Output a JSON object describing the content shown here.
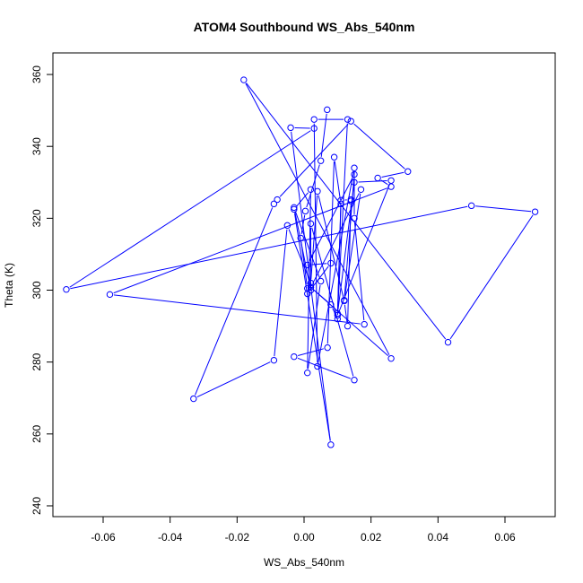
{
  "chart_data": {
    "type": "line",
    "title": "ATOM4 Southbound WS_Abs_540nm",
    "xlabel": "WS_Abs_540nm",
    "ylabel": "Theta (K)",
    "xlim": [
      -0.075,
      0.075
    ],
    "ylim": [
      237,
      366
    ],
    "x_ticks": [
      -0.06,
      -0.04,
      -0.02,
      0.0,
      0.02,
      0.04,
      0.06
    ],
    "x_tick_labels": [
      "-0.06",
      "-0.04",
      "-0.02",
      "0.00",
      "0.02",
      "0.04",
      "0.06"
    ],
    "y_ticks": [
      240,
      260,
      280,
      300,
      320,
      340,
      360
    ],
    "y_tick_labels": [
      "240",
      "260",
      "280",
      "300",
      "320",
      "340",
      "360"
    ],
    "grid": false,
    "line_color": "#0000ff",
    "marker": "open-circle",
    "points": [
      {
        "x": 0.0069,
        "y": 350.2
      },
      {
        "x": 0.005,
        "y": 336.0
      },
      {
        "x": 0.0004,
        "y": 322.0
      },
      {
        "x": -0.001,
        "y": 314.5
      },
      {
        "x": 0.001,
        "y": 300.5
      },
      {
        "x": 0.002,
        "y": 300.8
      },
      {
        "x": 0.026,
        "y": 281.0
      },
      {
        "x": -0.018,
        "y": 358.5
      },
      {
        "x": 0.043,
        "y": 285.5
      },
      {
        "x": 0.069,
        "y": 321.8
      },
      {
        "x": 0.05,
        "y": 323.5
      },
      {
        "x": -0.071,
        "y": 300.2
      },
      {
        "x": 0.003,
        "y": 345.0
      },
      {
        "x": -0.004,
        "y": 345.2
      },
      {
        "x": 0.008,
        "y": 257.0
      },
      {
        "x": -0.003,
        "y": 322.5
      },
      {
        "x": 0.002,
        "y": 328.0
      },
      {
        "x": 0.001,
        "y": 277.0
      },
      {
        "x": 0.005,
        "y": 302.5
      },
      {
        "x": -0.003,
        "y": 323.0
      },
      {
        "x": 0.002,
        "y": 300.0
      },
      {
        "x": 0.002,
        "y": 318.5
      },
      {
        "x": 0.015,
        "y": 275.0
      },
      {
        "x": -0.003,
        "y": 281.5
      },
      {
        "x": 0.007,
        "y": 284.0
      },
      {
        "x": 0.009,
        "y": 337.0
      },
      {
        "x": 0.011,
        "y": 324.0
      },
      {
        "x": 0.01,
        "y": 293.5
      },
      {
        "x": 0.015,
        "y": 330.0
      },
      {
        "x": 0.026,
        "y": 330.5
      },
      {
        "x": 0.01,
        "y": 293.0
      },
      {
        "x": 0.013,
        "y": 347.5
      },
      {
        "x": 0.003,
        "y": 347.5
      },
      {
        "x": 0.004,
        "y": 278.8
      },
      {
        "x": 0.015,
        "y": 334.0
      },
      {
        "x": 0.015,
        "y": 320.0
      },
      {
        "x": 0.018,
        "y": 290.5
      },
      {
        "x": -0.058,
        "y": 298.8
      },
      {
        "x": 0.026,
        "y": 328.8
      },
      {
        "x": 0.022,
        "y": 331.2
      },
      {
        "x": 0.031,
        "y": 333.0
      },
      {
        "x": 0.014,
        "y": 347.0
      },
      {
        "x": -0.008,
        "y": 325.2
      },
      {
        "x": -0.009,
        "y": 324.0
      },
      {
        "x": -0.033,
        "y": 269.8
      },
      {
        "x": -0.009,
        "y": 280.5
      },
      {
        "x": -0.005,
        "y": 318.0
      },
      {
        "x": 0.002,
        "y": 302.0
      },
      {
        "x": 0.004,
        "y": 327.5
      },
      {
        "x": 0.012,
        "y": 297.0
      },
      {
        "x": 0.013,
        "y": 290.0
      },
      {
        "x": 0.014,
        "y": 324.8
      },
      {
        "x": 0.014,
        "y": 325.2
      },
      {
        "x": 0.011,
        "y": 325.0
      },
      {
        "x": 0.01,
        "y": 292.0
      },
      {
        "x": 0.008,
        "y": 296.0
      },
      {
        "x": 0.002,
        "y": 300.8
      },
      {
        "x": 0.017,
        "y": 328.0
      },
      {
        "x": 0.012,
        "y": 297.2
      },
      {
        "x": 0.015,
        "y": 332.2
      },
      {
        "x": 0.001,
        "y": 307.0
      },
      {
        "x": 0.008,
        "y": 307.5
      },
      {
        "x": 0.001,
        "y": 299.0
      }
    ]
  }
}
